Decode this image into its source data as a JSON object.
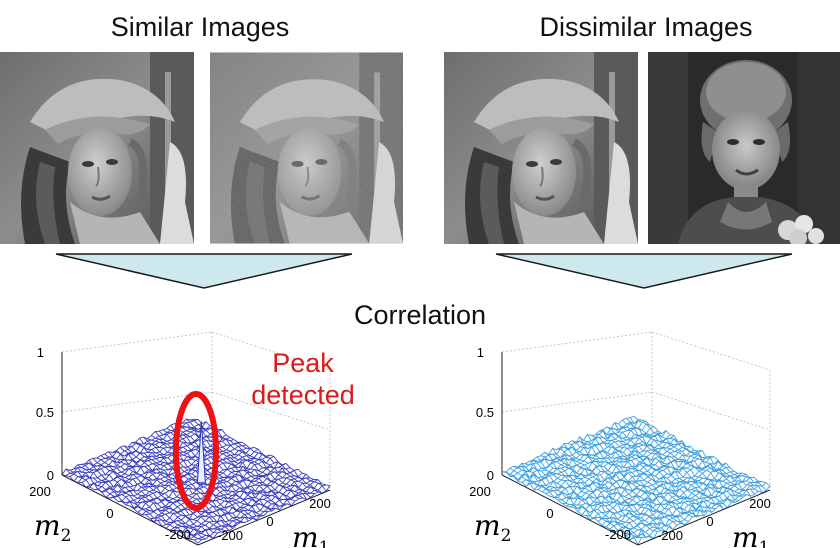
{
  "headings": {
    "similar": "Similar Images",
    "dissimilar": "Dissimilar Images",
    "correlation": "Correlation"
  },
  "photos": [
    {
      "name": "lena-original",
      "group": "similar"
    },
    {
      "name": "lena-noisy",
      "group": "similar"
    },
    {
      "name": "lena-original",
      "group": "dissimilar"
    },
    {
      "name": "woman-portrait",
      "group": "dissimilar"
    }
  ],
  "annotation": {
    "line1": "Peak",
    "line2": "detected",
    "color": "#d81b1b"
  },
  "colors": {
    "funnel_fill": "#cde9ee",
    "funnel_stroke": "#1a1a1a",
    "surface_left": "#3a3fbf",
    "surface_right": "#3fa0e0"
  },
  "chart_data": [
    {
      "type": "surface",
      "axes": {
        "z_ticks": [
          "0",
          "0.5",
          "1"
        ],
        "x_ticks": [
          "-200",
          "0",
          "200"
        ],
        "y_ticks": [
          "200",
          "0",
          "-200"
        ],
        "x_label": "m",
        "x_label_sub": "1",
        "y_label": "m",
        "y_label_sub": "2",
        "zlim": [
          0,
          1
        ]
      },
      "noise_level": 0.04,
      "peak": {
        "m1": 0,
        "m2": 0,
        "value": 0.5
      }
    },
    {
      "type": "surface",
      "axes": {
        "z_ticks": [
          "0",
          "0.5",
          "1"
        ],
        "x_ticks": [
          "-200",
          "0",
          "200"
        ],
        "y_ticks": [
          "200",
          "0",
          "-200"
        ],
        "x_label": "m",
        "x_label_sub": "1",
        "y_label": "m",
        "y_label_sub": "2",
        "zlim": [
          0,
          1
        ]
      },
      "noise_level": 0.05,
      "peak": null
    }
  ]
}
